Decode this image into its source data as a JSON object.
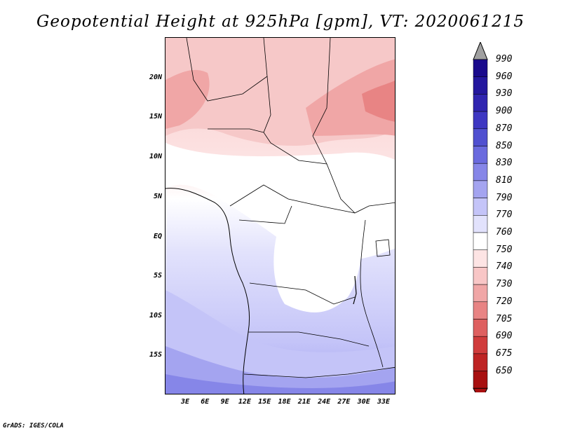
{
  "title": "Geopotential Height at 925hPa [gpm], VT: 2020061215",
  "footer": "GrADS: IGES/COLA",
  "lat_labels": [
    "20N",
    "15N",
    "10N",
    "5N",
    "EQ",
    "5S",
    "10S",
    "15S"
  ],
  "lon_labels": [
    "3E",
    "6E",
    "9E",
    "12E",
    "15E",
    "18E",
    "21E",
    "24E",
    "27E",
    "30E",
    "33E"
  ],
  "colorbar": {
    "levels": [
      "990",
      "960",
      "930",
      "900",
      "870",
      "850",
      "830",
      "810",
      "790",
      "770",
      "760",
      "750",
      "740",
      "730",
      "720",
      "705",
      "690",
      "675",
      "650"
    ],
    "colors": [
      "#1a0a8c",
      "#24179e",
      "#3025b0",
      "#3e37c2",
      "#5050d0",
      "#6a6ade",
      "#8686e8",
      "#a4a4f0",
      "#c4c4f8",
      "#e2e2fc",
      "#ffffff",
      "#fde4e4",
      "#f8c6c6",
      "#f0a6a6",
      "#e88484",
      "#de6060",
      "#d03c3c",
      "#be2424",
      "#a81010"
    ]
  }
}
